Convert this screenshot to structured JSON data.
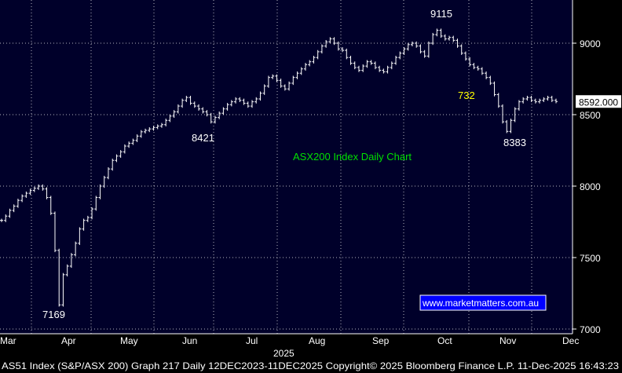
{
  "chart_data": {
    "type": "line",
    "title": "ASX200 Index Daily Chart",
    "ylim": [
      7000,
      9250
    ],
    "y_ticks": [
      7000,
      7500,
      8000,
      8500,
      9000
    ],
    "y_tick_labels": [
      "7000",
      "7500",
      "8000",
      "8500",
      "9000"
    ],
    "months": [
      "Mar",
      "Apr",
      "May",
      "Jun",
      "Jul",
      "Aug",
      "Sep",
      "Oct",
      "Nov",
      "Dec"
    ],
    "year_label": "2025",
    "last_value_label": "8592.000",
    "series": [
      {
        "values": [
          [
            0,
            7760
          ],
          [
            1,
            7790
          ],
          [
            2,
            7830
          ],
          [
            3,
            7860
          ],
          [
            4,
            7900
          ],
          [
            5,
            7930
          ],
          [
            6,
            7950
          ],
          [
            7,
            7970
          ],
          [
            8,
            7985
          ],
          [
            9,
            8000
          ],
          [
            10,
            7980
          ],
          [
            11,
            7920
          ],
          [
            12,
            7810
          ],
          [
            13,
            7550
          ],
          [
            14,
            7169
          ],
          [
            15,
            7380
          ],
          [
            16,
            7440
          ],
          [
            17,
            7520
          ],
          [
            18,
            7600
          ],
          [
            19,
            7700
          ],
          [
            20,
            7760
          ],
          [
            21,
            7780
          ],
          [
            22,
            7840
          ],
          [
            23,
            7920
          ],
          [
            24,
            8000
          ],
          [
            25,
            8060
          ],
          [
            26,
            8120
          ],
          [
            27,
            8180
          ],
          [
            28,
            8210
          ],
          [
            29,
            8240
          ],
          [
            30,
            8280
          ],
          [
            31,
            8300
          ],
          [
            32,
            8320
          ],
          [
            33,
            8350
          ],
          [
            34,
            8380
          ],
          [
            35,
            8390
          ],
          [
            36,
            8400
          ],
          [
            37,
            8410
          ],
          [
            38,
            8420
          ],
          [
            39,
            8430
          ],
          [
            40,
            8460
          ],
          [
            41,
            8490
          ],
          [
            42,
            8520
          ],
          [
            43,
            8560
          ],
          [
            44,
            8600
          ],
          [
            45,
            8620
          ],
          [
            46,
            8580
          ],
          [
            47,
            8560
          ],
          [
            48,
            8540
          ],
          [
            49,
            8520
          ],
          [
            50,
            8500
          ],
          [
            51,
            8450
          ],
          [
            52,
            8480
          ],
          [
            53,
            8510
          ],
          [
            54,
            8540
          ],
          [
            55,
            8570
          ],
          [
            56,
            8590
          ],
          [
            57,
            8610
          ],
          [
            58,
            8600
          ],
          [
            59,
            8580
          ],
          [
            60,
            8560
          ],
          [
            61,
            8590
          ],
          [
            62,
            8610
          ],
          [
            63,
            8650
          ],
          [
            64,
            8700
          ],
          [
            65,
            8760
          ],
          [
            66,
            8770
          ],
          [
            67,
            8740
          ],
          [
            68,
            8700
          ],
          [
            69,
            8680
          ],
          [
            70,
            8720
          ],
          [
            71,
            8760
          ],
          [
            72,
            8790
          ],
          [
            73,
            8820
          ],
          [
            74,
            8850
          ],
          [
            75,
            8870
          ],
          [
            76,
            8900
          ],
          [
            77,
            8940
          ],
          [
            78,
            8980
          ],
          [
            79,
            9010
          ],
          [
            80,
            9030
          ],
          [
            81,
            9000
          ],
          [
            82,
            8960
          ],
          [
            83,
            8950
          ],
          [
            84,
            8900
          ],
          [
            85,
            8860
          ],
          [
            86,
            8830
          ],
          [
            87,
            8810
          ],
          [
            88,
            8840
          ],
          [
            89,
            8870
          ],
          [
            90,
            8860
          ],
          [
            91,
            8830
          ],
          [
            92,
            8810
          ],
          [
            93,
            8800
          ],
          [
            94,
            8830
          ],
          [
            95,
            8860
          ],
          [
            96,
            8900
          ],
          [
            97,
            8930
          ],
          [
            98,
            8960
          ],
          [
            99,
            8990
          ],
          [
            100,
            9000
          ],
          [
            101,
            8980
          ],
          [
            102,
            8940
          ],
          [
            103,
            8910
          ],
          [
            104,
            9000
          ],
          [
            105,
            9060
          ],
          [
            106,
            9090
          ],
          [
            107,
            9050
          ],
          [
            108,
            9030
          ],
          [
            109,
            9040
          ],
          [
            110,
            9020
          ],
          [
            111,
            8980
          ],
          [
            112,
            8930
          ],
          [
            113,
            8890
          ],
          [
            114,
            8850
          ],
          [
            115,
            8830
          ],
          [
            116,
            8820
          ],
          [
            117,
            8790
          ],
          [
            118,
            8760
          ],
          [
            119,
            8720
          ],
          [
            120,
            8640
          ],
          [
            121,
            8560
          ],
          [
            122,
            8450
          ],
          [
            123,
            8383
          ],
          [
            124,
            8460
          ],
          [
            125,
            8540
          ],
          [
            126,
            8590
          ],
          [
            127,
            8610
          ],
          [
            128,
            8620
          ],
          [
            129,
            8600
          ],
          [
            130,
            8590
          ],
          [
            131,
            8600
          ],
          [
            132,
            8610
          ],
          [
            133,
            8620
          ],
          [
            134,
            8600
          ],
          [
            135,
            8592
          ]
        ]
      }
    ],
    "annotations": [
      {
        "text": "9115",
        "value": 9115,
        "color": "#ffffff"
      },
      {
        "text": "8421",
        "value": 8421,
        "color": "#ffffff"
      },
      {
        "text": "7169",
        "value": 7169,
        "color": "#ffffff"
      },
      {
        "text": "8383",
        "value": 8383,
        "color": "#ffffff"
      },
      {
        "text": "732",
        "value": 732,
        "color": "#ffff00"
      }
    ],
    "watermark_text": "www.marketmatters.com.au",
    "colors": {
      "background": "#000000",
      "plot_background": "#00002a",
      "grid": "#ffffff",
      "axis_text": "#ffffff",
      "title_text": "#00e000",
      "highlight_text": "#ffff00",
      "watermark_fill": "#0000ff",
      "watermark_text": "#ffffff",
      "series": "#ffffff"
    }
  },
  "footer": {
    "text": "AS51 Index (S&P/ASX 200) Graph 217 Daily 12DEC2023-11DEC2025  Copyright© 2025 Bloomberg Finance L.P.  11-Dec-2025 16:43:23"
  }
}
